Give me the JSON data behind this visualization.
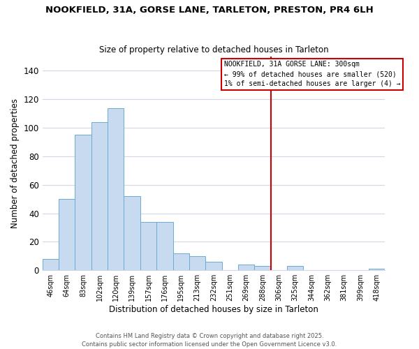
{
  "title": "NOOKFIELD, 31A, GORSE LANE, TARLETON, PRESTON, PR4 6LH",
  "subtitle": "Size of property relative to detached houses in Tarleton",
  "xlabel": "Distribution of detached houses by size in Tarleton",
  "ylabel": "Number of detached properties",
  "bar_color": "#c8daf0",
  "bar_edge_color": "#6aaad4",
  "bins": [
    "46sqm",
    "64sqm",
    "83sqm",
    "102sqm",
    "120sqm",
    "139sqm",
    "157sqm",
    "176sqm",
    "195sqm",
    "213sqm",
    "232sqm",
    "251sqm",
    "269sqm",
    "288sqm",
    "306sqm",
    "325sqm",
    "344sqm",
    "362sqm",
    "381sqm",
    "399sqm",
    "418sqm"
  ],
  "values": [
    8,
    50,
    95,
    104,
    114,
    52,
    34,
    34,
    12,
    10,
    6,
    0,
    4,
    3,
    0,
    3,
    0,
    0,
    0,
    0,
    1
  ],
  "vline_x": 14,
  "vline_color": "#cc0000",
  "ylim": [
    0,
    150
  ],
  "yticks": [
    0,
    20,
    40,
    60,
    80,
    100,
    120,
    140
  ],
  "legend_text_line1": "NOOKFIELD, 31A GORSE LANE: 300sqm",
  "legend_text_line2": "← 99% of detached houses are smaller (520)",
  "legend_text_line3": "1% of semi-detached houses are larger (4) →",
  "footer_line1": "Contains HM Land Registry data © Crown copyright and database right 2025.",
  "footer_line2": "Contains public sector information licensed under the Open Government Licence v3.0.",
  "background_color": "#ffffff",
  "grid_color": "#d0d8e8"
}
